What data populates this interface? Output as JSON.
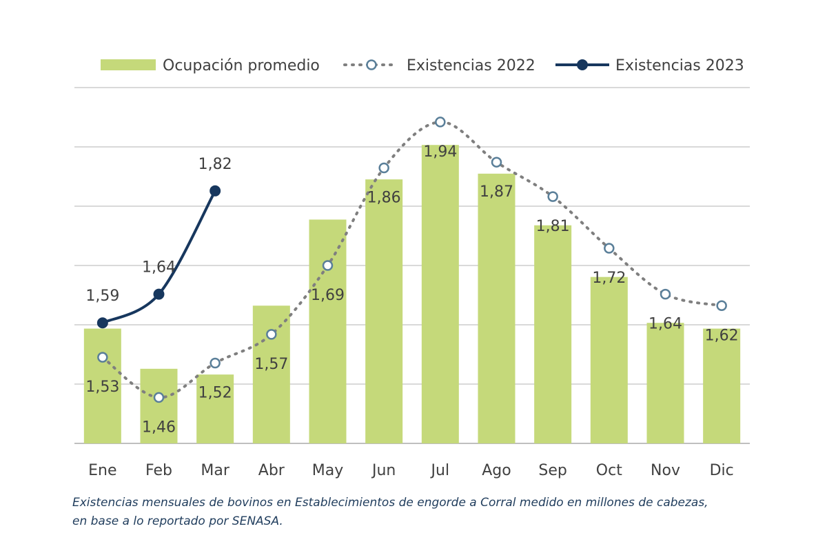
{
  "chart_data": {
    "type": "bar+line",
    "categories": [
      "Ene",
      "Feb",
      "Mar",
      "Abr",
      "May",
      "Jun",
      "Jul",
      "Ago",
      "Sep",
      "Oct",
      "Nov",
      "Dic"
    ],
    "bar_series": {
      "name": "Ocupación promedio",
      "color": "#c5d97a",
      "values": [
        1.58,
        1.51,
        1.5,
        1.62,
        1.77,
        1.84,
        1.9,
        1.85,
        1.76,
        1.67,
        1.59,
        1.58
      ]
    },
    "line_series": [
      {
        "name": "Existencias 2022",
        "style": "dotted",
        "color": "#7f7f7f",
        "marker_fill": "#ffffff",
        "marker_stroke": "#5a7f99",
        "values": [
          1.53,
          1.46,
          1.52,
          1.57,
          1.69,
          1.86,
          1.94,
          1.87,
          1.81,
          1.72,
          1.64,
          1.62
        ],
        "labels": [
          "1,53",
          "1,46",
          "1,52",
          "1,57",
          "1,69",
          "1,86",
          "1,94",
          "1,87",
          "1,81",
          "1,72",
          "1,64",
          "1,62"
        ]
      },
      {
        "name": "Existencias 2023",
        "style": "solid",
        "color": "#17375e",
        "marker_fill": "#17375e",
        "marker_stroke": "#17375e",
        "values": [
          1.59,
          1.64,
          1.82
        ],
        "labels": [
          "1,59",
          "1,64",
          "1,82"
        ]
      }
    ],
    "y_range": [
      1.38,
      2.0
    ],
    "gridlines": true,
    "legend_position": "top",
    "caption": [
      "Existencias mensuales de bovinos en Establecimientos de engorde a Corral medido en millones de cabezas,",
      "en base a lo reportado por SENASA."
    ]
  }
}
